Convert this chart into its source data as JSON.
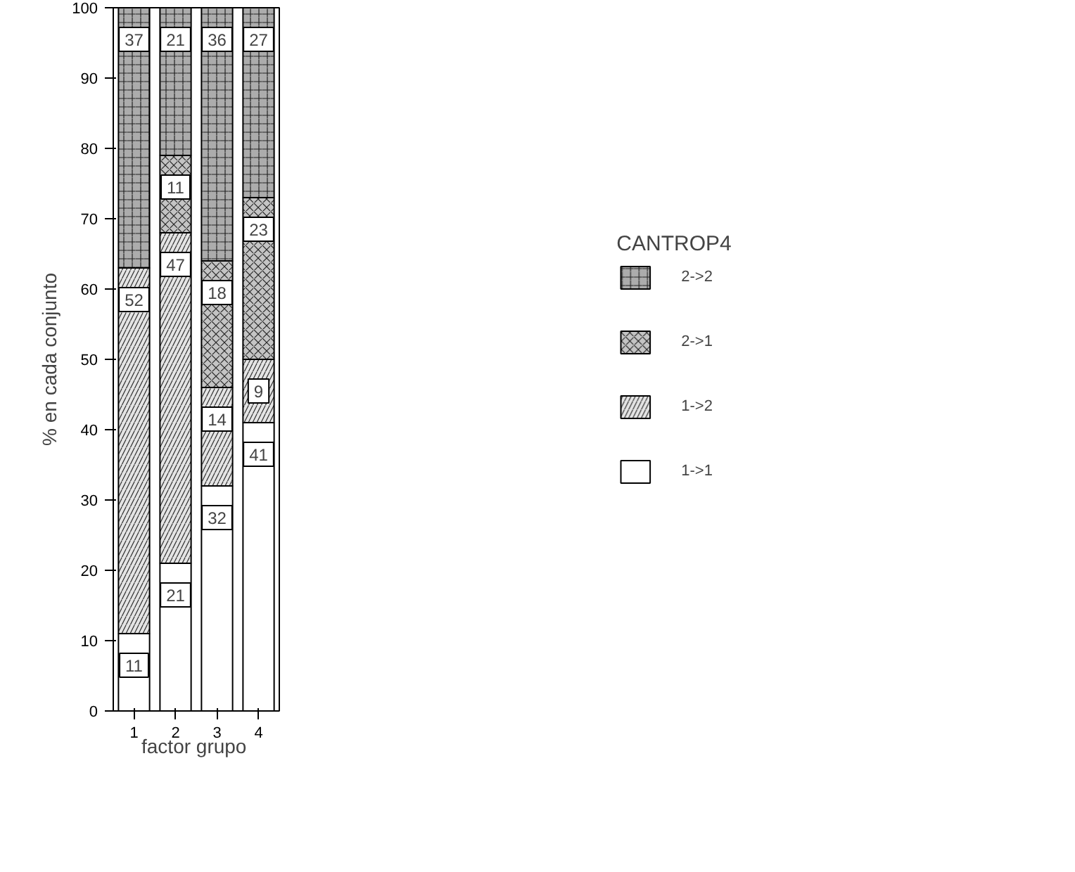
{
  "chart_data": {
    "type": "bar",
    "stacked": true,
    "xlabel": "factor grupo",
    "ylabel": "% en cada conjunto",
    "legend_title": "CANTROP4",
    "legend": "right",
    "grid": false,
    "categories": [
      "1",
      "2",
      "3",
      "4"
    ],
    "ylim": [
      0,
      100
    ],
    "yticks": [
      0,
      10,
      20,
      30,
      40,
      50,
      60,
      70,
      80,
      90,
      100
    ],
    "series": [
      {
        "name": "1->1",
        "color": "#ffffff",
        "values": [
          11,
          21,
          32,
          41
        ],
        "value_labels": [
          "11",
          "21",
          "32",
          "41"
        ]
      },
      {
        "name": "1->2",
        "color": "#e4e4e4",
        "values": [
          52,
          47,
          14,
          9
        ],
        "value_labels": [
          "52",
          "47",
          "14",
          "9"
        ]
      },
      {
        "name": "2->1",
        "color": "#c4c4c4",
        "values": [
          0,
          11,
          18,
          23
        ],
        "value_labels": [
          null,
          "11",
          "18",
          "23"
        ]
      },
      {
        "name": "2->2",
        "color": "#acacac",
        "values": [
          37,
          21,
          36,
          27
        ],
        "value_labels": [
          "37",
          "21",
          "36",
          "27"
        ]
      }
    ]
  }
}
